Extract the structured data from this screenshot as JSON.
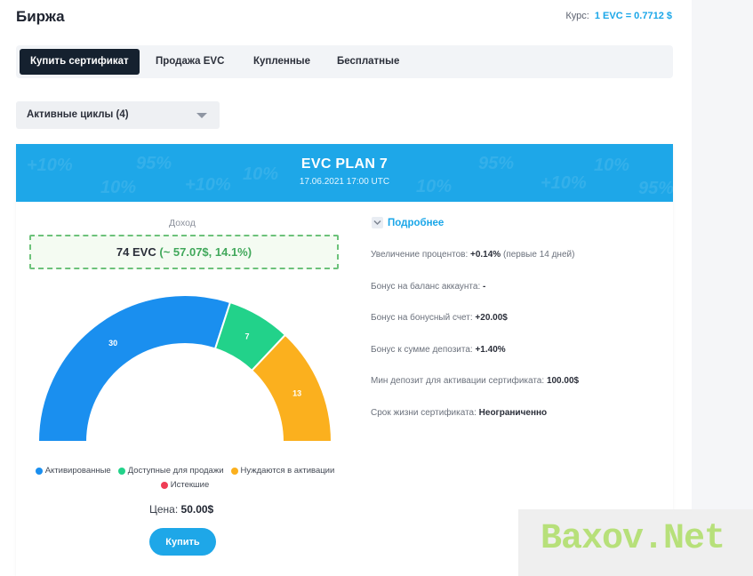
{
  "header": {
    "title": "Биржа",
    "rate_label": "Курс:",
    "rate_value": "1 EVC = 0.7712 $"
  },
  "tabs": [
    {
      "label": "Купить сертификат",
      "active": true
    },
    {
      "label": "Продажа EVC",
      "active": false
    },
    {
      "label": "Купленные",
      "active": false
    },
    {
      "label": "Бесплатные",
      "active": false
    }
  ],
  "cycles_select": {
    "selected": "Активные циклы (4)"
  },
  "plan": {
    "title": "EVC PLAN 7",
    "date": "17.06.2021 17:00 UTC",
    "income_label": "Доход",
    "income_main": "74 EVC",
    "income_extra": "(~ 57.07$, 14.1%)",
    "price_label": "Цена:",
    "price_value": "50.00$",
    "buy_label": "Купить"
  },
  "details": {
    "toggle_label": "Подробнее",
    "rows": [
      {
        "label": "Увеличение процентов:",
        "value": "+0.14%",
        "note": "(первые 14 дней)"
      },
      {
        "label": "Бонус на баланс аккаунта:",
        "value": "-",
        "note": ""
      },
      {
        "label": "Бонус на бонусный счет:",
        "value": "+20.00$",
        "note": ""
      },
      {
        "label": "Бонус к сумме депозита:",
        "value": "+1.40%",
        "note": ""
      },
      {
        "label": "Мин депозит для активации сертификата:",
        "value": "100.00$",
        "note": ""
      },
      {
        "label": "Срок жизни сертификата:",
        "value": "Неограниченно",
        "note": ""
      }
    ]
  },
  "chart_data": {
    "type": "pie",
    "shape": "semi-donut",
    "segments": [
      {
        "label": "Активированные",
        "value": 30,
        "color": "#1a8fef"
      },
      {
        "label": "Доступные для продажи",
        "value": 7,
        "color": "#22d28a"
      },
      {
        "label": "Нуждаются в активации",
        "value": 13,
        "color": "#fbb01e"
      },
      {
        "label": "Истекшие",
        "value": 0,
        "color": "#ef3d55"
      }
    ]
  },
  "watermark": "Baxov.Net",
  "colors": {
    "accent": "#1ea7e8",
    "dark": "#15212f",
    "income_green": "#41a85b"
  }
}
